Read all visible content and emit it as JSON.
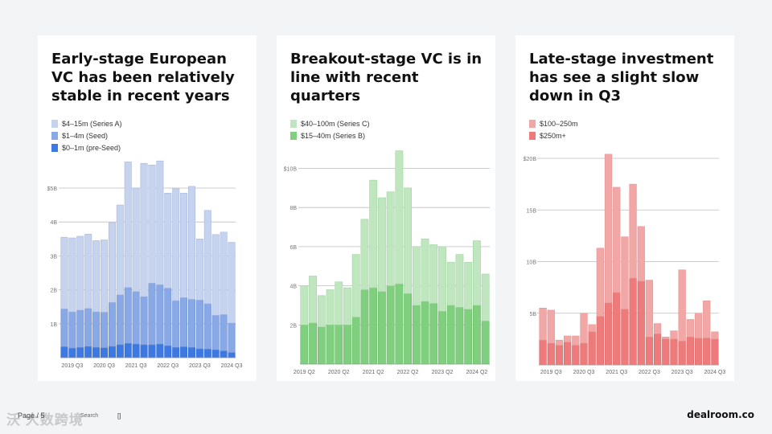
{
  "charts": [
    {
      "title": "Early-stage European VC has been relatively stable in recent years",
      "legend": [
        {
          "label": "$4–15m (Series A)",
          "color": "#c5d3ee"
        },
        {
          "label": "$1–4m (Seed)",
          "color": "#88a8e6"
        },
        {
          "label": "$0–1m (pre-Seed)",
          "color": "#3d79e3"
        }
      ],
      "y_ticks": [
        "1B",
        "2B",
        "3B",
        "4B",
        "$5B"
      ],
      "x_labels": [
        "2019 Q3",
        "2020 Q3",
        "2021 Q3",
        "2022 Q3",
        "2023 Q3",
        "2024 Q3"
      ]
    },
    {
      "title": "Breakout-stage VC is in line with recent quarters",
      "legend": [
        {
          "label": "$40–100m (Series C)",
          "color": "#bfe6bf"
        },
        {
          "label": "$15–40m (Series B)",
          "color": "#7fcf7f"
        }
      ],
      "y_ticks": [
        "2B",
        "4B",
        "6B",
        "8B",
        "$10B"
      ],
      "x_labels": [
        "2019 Q2",
        "2020 Q2",
        "2021 Q2",
        "2022 Q2",
        "2023 Q2",
        "2024 Q2"
      ]
    },
    {
      "title": "Late-stage investment has see a slight slow down in Q3",
      "legend": [
        {
          "label": "$100–250m",
          "color": "#f2a7a7"
        },
        {
          "label": "$250m+",
          "color": "#ee7b7b"
        }
      ],
      "y_ticks": [
        "5B",
        "10B",
        "15B",
        "$20B"
      ],
      "x_labels": [
        "2019 Q3",
        "2020 Q3",
        "2021 Q3",
        "2022 Q3",
        "2023 Q3",
        "2024 Q3"
      ]
    }
  ],
  "chart_data": [
    {
      "type": "bar",
      "stacked": true,
      "title": "Early-stage European VC has been relatively stable in recent years",
      "categories": [
        "2019 Q2",
        "2019 Q3",
        "2019 Q4",
        "2020 Q1",
        "2020 Q2",
        "2020 Q3",
        "2020 Q4",
        "2021 Q1",
        "2021 Q2",
        "2021 Q3",
        "2021 Q4",
        "2022 Q1",
        "2022 Q2",
        "2022 Q3",
        "2022 Q4",
        "2023 Q1",
        "2023 Q2",
        "2023 Q3",
        "2023 Q4",
        "2024 Q1",
        "2024 Q2",
        "2024 Q3"
      ],
      "series": [
        {
          "name": "$0–1m (pre-Seed)",
          "values": [
            0.32,
            0.28,
            0.3,
            0.33,
            0.3,
            0.29,
            0.33,
            0.38,
            0.42,
            0.4,
            0.38,
            0.38,
            0.4,
            0.35,
            0.3,
            0.32,
            0.3,
            0.26,
            0.25,
            0.23,
            0.2,
            0.15
          ]
        },
        {
          "name": "$1–4m (Seed)",
          "values": [
            1.12,
            1.07,
            1.1,
            1.12,
            1.05,
            1.05,
            1.3,
            1.47,
            1.65,
            1.55,
            1.42,
            1.82,
            1.75,
            1.7,
            1.38,
            1.45,
            1.42,
            1.44,
            1.34,
            1.02,
            1.07,
            0.87
          ]
        },
        {
          "name": "$4–15m (Series A)",
          "values": [
            2.11,
            2.18,
            2.18,
            2.19,
            2.1,
            2.13,
            2.35,
            2.65,
            3.7,
            3.05,
            3.93,
            3.48,
            3.65,
            2.8,
            3.3,
            3.08,
            3.33,
            1.8,
            2.75,
            2.38,
            2.43,
            2.38
          ]
        }
      ],
      "ylabel": "",
      "xlabel": "",
      "ylim": [
        0,
        5.6
      ],
      "legend": "top-left"
    },
    {
      "type": "bar",
      "stacked": true,
      "title": "Breakout-stage VC is in line with recent quarters",
      "categories": [
        "2019 Q2",
        "2019 Q3",
        "2019 Q4",
        "2020 Q1",
        "2020 Q2",
        "2020 Q3",
        "2020 Q4",
        "2021 Q1",
        "2021 Q2",
        "2021 Q3",
        "2021 Q4",
        "2022 Q1",
        "2022 Q2",
        "2022 Q3",
        "2022 Q4",
        "2023 Q1",
        "2023 Q2",
        "2023 Q3",
        "2023 Q4",
        "2024 Q1",
        "2024 Q2",
        "2024 Q3"
      ],
      "series": [
        {
          "name": "$15–40m (Series B)",
          "values": [
            2.0,
            2.1,
            1.9,
            2.0,
            2.0,
            2.0,
            2.4,
            3.8,
            3.9,
            3.7,
            4.0,
            4.1,
            3.6,
            3.0,
            3.2,
            3.1,
            2.7,
            3.0,
            2.9,
            2.8,
            3.0,
            2.2
          ]
        },
        {
          "name": "$40–100m (Series C)",
          "values": [
            2.0,
            2.4,
            1.6,
            1.8,
            2.2,
            1.9,
            3.2,
            3.6,
            5.5,
            4.8,
            4.8,
            6.8,
            5.4,
            3.0,
            3.2,
            3.0,
            3.3,
            2.2,
            2.7,
            2.4,
            3.3,
            2.4
          ]
        }
      ],
      "ylabel": "",
      "xlabel": "",
      "ylim": [
        0,
        11
      ],
      "legend": "top-left"
    },
    {
      "type": "bar",
      "stacked": true,
      "title": "Late-stage investment has see a slight slow down in Q3",
      "categories": [
        "2019 Q2",
        "2019 Q3",
        "2019 Q4",
        "2020 Q1",
        "2020 Q2",
        "2020 Q3",
        "2020 Q4",
        "2021 Q1",
        "2021 Q2",
        "2021 Q3",
        "2021 Q4",
        "2022 Q1",
        "2022 Q2",
        "2022 Q3",
        "2022 Q4",
        "2023 Q1",
        "2023 Q2",
        "2023 Q3",
        "2023 Q4",
        "2024 Q1",
        "2024 Q2",
        "2024 Q3"
      ],
      "series": [
        {
          "name": "$250m+",
          "values": [
            2.4,
            2.1,
            1.9,
            2.2,
            1.9,
            2.1,
            3.2,
            4.7,
            6.0,
            7.0,
            5.4,
            8.4,
            8.1,
            2.7,
            3.0,
            2.5,
            2.5,
            2.3,
            2.7,
            2.6,
            2.6,
            2.5
          ]
        },
        {
          "name": "$100–250m",
          "values": [
            3.1,
            3.2,
            0.5,
            0.6,
            0.9,
            2.9,
            0.7,
            6.6,
            14.4,
            10.2,
            7.0,
            9.1,
            5.3,
            5.5,
            1.0,
            0.2,
            0.8,
            6.9,
            1.7,
            2.4,
            3.6,
            0.7
          ]
        }
      ],
      "ylabel": "",
      "xlabel": "",
      "ylim": [
        0,
        21
      ],
      "legend": "top-left"
    }
  ],
  "footer": {
    "page": "Page / 5",
    "search": "Search",
    "box": "[]",
    "watermark": "沃 大数跨境",
    "brand": "dealroom.co"
  }
}
